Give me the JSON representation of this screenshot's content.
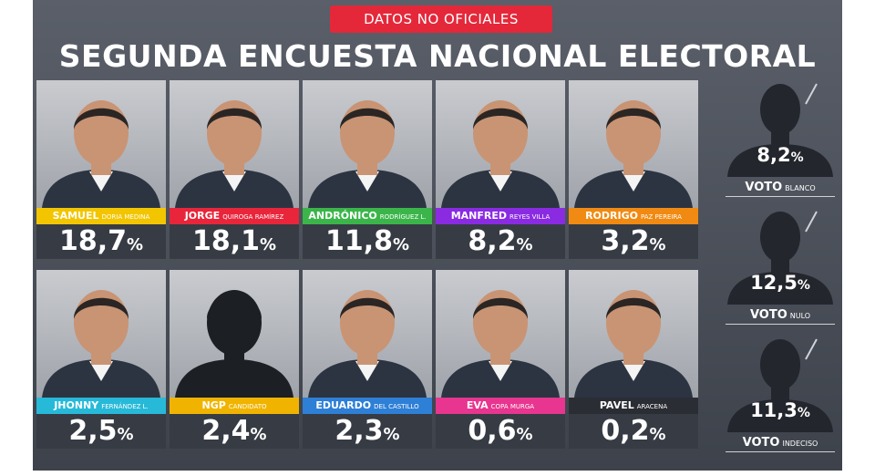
{
  "header": {
    "ribbon": "DATOS NO OFICIALES",
    "title": "SEGUNDA ENCUESTA NACIONAL ELECTORAL"
  },
  "candidates": [
    {
      "first": "SAMUEL",
      "rest": "DORIA MEDINA",
      "value": "18,7",
      "unit": "%",
      "color": "#f2c500",
      "photo": "photo"
    },
    {
      "first": "JORGE",
      "rest": "QUIROGA RAMÍREZ",
      "value": "18,1",
      "unit": "%",
      "color": "#e8253a",
      "photo": "photo"
    },
    {
      "first": "ANDRÓNICO",
      "rest": "RODRÍGUEZ L.",
      "value": "11,8",
      "unit": "%",
      "color": "#3bb54a",
      "photo": "photo"
    },
    {
      "first": "MANFRED",
      "rest": "REYES VILLA",
      "value": "8,2",
      "unit": "%",
      "color": "#8a2be2",
      "photo": "photo"
    },
    {
      "first": "RODRIGO",
      "rest": "PAZ PEREIRA",
      "value": "3,2",
      "unit": "%",
      "color": "#f08a12",
      "photo": "photo"
    },
    {
      "first": "JHONNY",
      "rest": "FERNÁNDEZ L.",
      "value": "2,5",
      "unit": "%",
      "color": "#27b9d8",
      "photo": "photo"
    },
    {
      "first": "NGP",
      "rest": "CANDIDATO",
      "value": "2,4",
      "unit": "%",
      "color": "#f0b400",
      "photo": "silhouette"
    },
    {
      "first": "EDUARDO",
      "rest": "DEL CASTILLO",
      "value": "2,3",
      "unit": "%",
      "color": "#2e7fd6",
      "photo": "photo"
    },
    {
      "first": "EVA",
      "rest": "COPA MURGA",
      "value": "0,6",
      "unit": "%",
      "color": "#e8358f",
      "photo": "photo"
    },
    {
      "first": "PAVEL",
      "rest": "ARACENA",
      "value": "0,2",
      "unit": "%",
      "color": "#2a2d33",
      "photo": "photo"
    }
  ],
  "other_votes": [
    {
      "value": "8,2",
      "unit": "%",
      "label": "VOTO",
      "sub": "BLANCO"
    },
    {
      "value": "12,5",
      "unit": "%",
      "label": "VOTO",
      "sub": "NULO"
    },
    {
      "value": "11,3",
      "unit": "%",
      "label": "VOTO",
      "sub": "INDECISO"
    }
  ]
}
